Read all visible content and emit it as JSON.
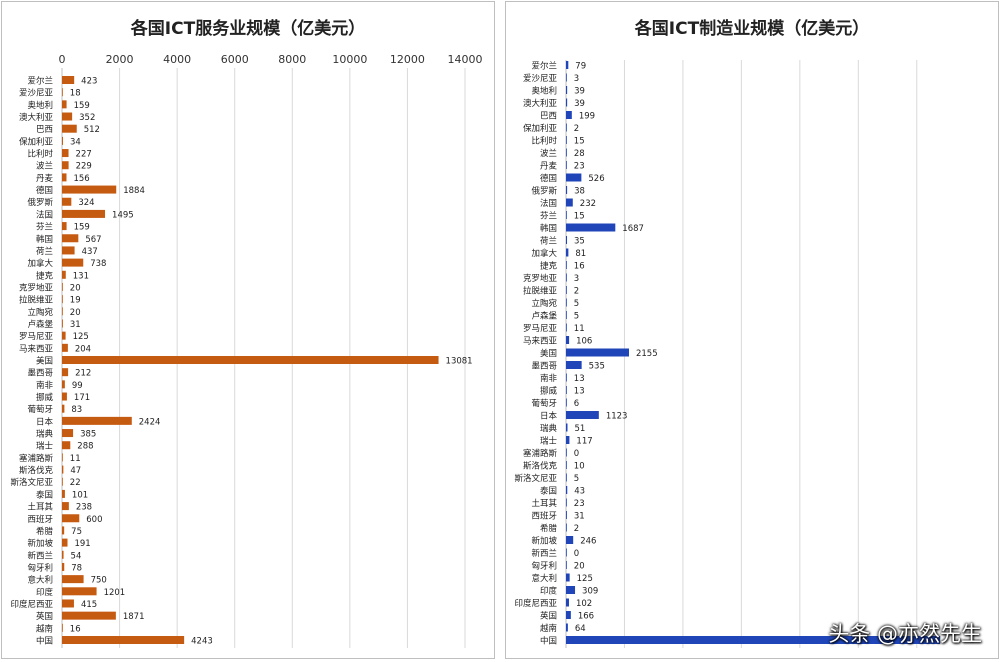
{
  "watermark": "头条 @亦然先生",
  "chart_data": [
    {
      "type": "bar",
      "orientation": "horizontal",
      "title": "各国ICT服务业规模（亿美元）",
      "xlim": [
        0,
        14000
      ],
      "xticks": [
        0,
        2000,
        4000,
        6000,
        8000,
        10000,
        12000,
        14000
      ],
      "x_axis_position": "top",
      "grid": true,
      "color": "#c55a11",
      "categories": [
        "爱尔兰",
        "爱沙尼亚",
        "奥地利",
        "澳大利亚",
        "巴西",
        "保加利亚",
        "比利时",
        "波兰",
        "丹麦",
        "德国",
        "俄罗斯",
        "法国",
        "芬兰",
        "韩国",
        "荷兰",
        "加拿大",
        "捷克",
        "克罗地亚",
        "拉脱维亚",
        "立陶宛",
        "卢森堡",
        "罗马尼亚",
        "马来西亚",
        "美国",
        "墨西哥",
        "南非",
        "挪威",
        "葡萄牙",
        "日本",
        "瑞典",
        "瑞士",
        "塞浦路斯",
        "斯洛伐克",
        "斯洛文尼亚",
        "泰国",
        "土耳其",
        "西班牙",
        "希腊",
        "新加坡",
        "新西兰",
        "匈牙利",
        "意大利",
        "印度",
        "印度尼西亚",
        "英国",
        "越南",
        "中国"
      ],
      "values": [
        423,
        18,
        159,
        352,
        512,
        34,
        227,
        229,
        156,
        1884,
        324,
        1495,
        159,
        567,
        437,
        738,
        131,
        20,
        19,
        20,
        31,
        125,
        204,
        13081,
        212,
        99,
        171,
        83,
        2424,
        385,
        288,
        11,
        47,
        22,
        101,
        238,
        600,
        75,
        191,
        54,
        78,
        750,
        1201,
        415,
        1871,
        16,
        4243
      ]
    },
    {
      "type": "bar",
      "orientation": "horizontal",
      "title": "各国ICT制造业规模（亿美元）",
      "xlim": [
        0,
        13000
      ],
      "x_axis_position": "none",
      "grid": true,
      "color": "#1f45b8",
      "categories": [
        "爱尔兰",
        "爱沙尼亚",
        "奥地利",
        "澳大利亚",
        "巴西",
        "保加利亚",
        "比利时",
        "波兰",
        "丹麦",
        "德国",
        "俄罗斯",
        "法国",
        "芬兰",
        "韩国",
        "荷兰",
        "加拿大",
        "捷克",
        "克罗地亚",
        "拉脱维亚",
        "立陶宛",
        "卢森堡",
        "罗马尼亚",
        "马来西亚",
        "美国",
        "墨西哥",
        "南非",
        "挪威",
        "葡萄牙",
        "日本",
        "瑞典",
        "瑞士",
        "塞浦路斯",
        "斯洛伐克",
        "斯洛文尼亚",
        "泰国",
        "土耳其",
        "西班牙",
        "希腊",
        "新加坡",
        "新西兰",
        "匈牙利",
        "意大利",
        "印度",
        "印度尼西亚",
        "英国",
        "越南",
        "中国"
      ],
      "values": [
        79,
        3,
        39,
        39,
        199,
        2,
        15,
        28,
        23,
        526,
        38,
        232,
        15,
        1687,
        35,
        81,
        16,
        3,
        2,
        5,
        5,
        11,
        106,
        2155,
        535,
        13,
        13,
        6,
        1123,
        51,
        117,
        0,
        10,
        5,
        43,
        23,
        31,
        2,
        246,
        0,
        20,
        125,
        309,
        102,
        166,
        64,
        null
      ],
      "value_labels_shown": [
        true,
        true,
        true,
        true,
        true,
        true,
        true,
        true,
        true,
        true,
        true,
        true,
        true,
        true,
        true,
        true,
        true,
        true,
        true,
        true,
        true,
        true,
        true,
        true,
        true,
        true,
        true,
        true,
        true,
        true,
        true,
        true,
        true,
        true,
        true,
        true,
        true,
        true,
        true,
        true,
        true,
        true,
        true,
        true,
        true,
        true,
        false
      ],
      "clipped_bar_estimate": 12800
    }
  ]
}
